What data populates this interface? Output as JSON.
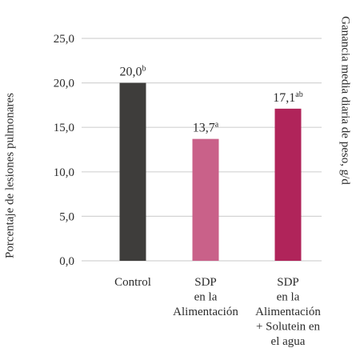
{
  "chart_data": {
    "type": "bar",
    "categories": [
      [
        "Control"
      ],
      [
        "SDP",
        "en la",
        "Alimentación"
      ],
      [
        "SDP",
        "en la",
        "Alimentación",
        "+ Solutein en",
        "el agua"
      ]
    ],
    "values": [
      20.0,
      13.7,
      17.1
    ],
    "data_labels": [
      "20,0",
      "13,7",
      "17,1"
    ],
    "data_label_superscripts": [
      "b",
      "a",
      "ab"
    ],
    "bar_colors": [
      "#3e3d3b",
      "#c96189",
      "#b0245a"
    ],
    "ylabel": "Porcentaje de lesiones pulmonares",
    "ylabel_right": "Ganancia media diaria de peso, g/d",
    "ylim": [
      0,
      25
    ],
    "yticks": [
      0,
      5,
      10,
      15,
      20,
      25
    ],
    "ytick_labels": [
      "0,0",
      "5,0",
      "10,0",
      "15,0",
      "20,0",
      "25,0"
    ],
    "grid": true,
    "gridline_color": "#d3d3d3"
  }
}
